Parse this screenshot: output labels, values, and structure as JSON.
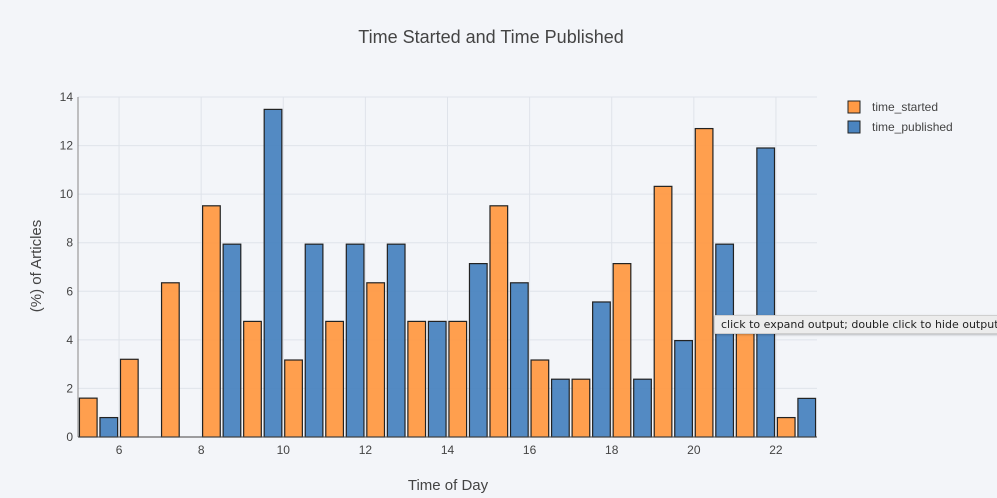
{
  "chart_data": {
    "type": "bar",
    "title": "Time Started and Time Published",
    "xlabel": "Time of Day",
    "ylabel": "(%) of Articles",
    "xlim": [
      5,
      23
    ],
    "ylim": [
      0,
      14
    ],
    "xticks": [
      6,
      8,
      10,
      12,
      14,
      16,
      18,
      20,
      22
    ],
    "yticks": [
      0,
      2,
      4,
      6,
      8,
      10,
      12,
      14
    ],
    "grid": true,
    "legend_position": "top-right",
    "x": [
      5,
      6,
      7,
      8,
      9,
      10,
      11,
      12,
      13,
      14,
      15,
      16,
      17,
      18,
      19,
      20,
      21,
      22
    ],
    "series": [
      {
        "name": "time_started",
        "color": "#ff9a45",
        "values": [
          1.6,
          3.2,
          6.35,
          9.52,
          4.76,
          3.17,
          4.76,
          6.35,
          4.76,
          4.76,
          9.52,
          3.17,
          2.38,
          7.14,
          10.32,
          12.7,
          5.0,
          0.8
        ]
      },
      {
        "name": "time_published",
        "color": "#4a84c0",
        "values": [
          0.8,
          0,
          0,
          7.94,
          13.49,
          7.94,
          7.94,
          7.94,
          4.76,
          7.14,
          6.35,
          2.38,
          5.56,
          2.38,
          3.97,
          7.94,
          11.9,
          1.59
        ]
      }
    ]
  },
  "tooltip": "click to expand output; double click to hide output"
}
